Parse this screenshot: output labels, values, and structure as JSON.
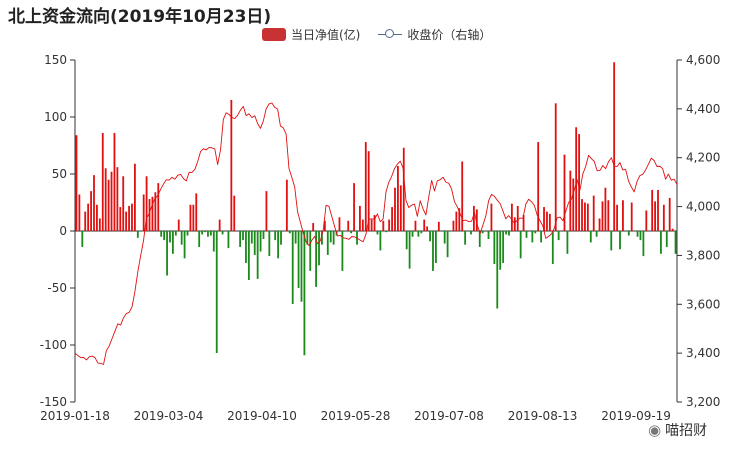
{
  "chart_data": {
    "type": "bar",
    "title": "北上资金流向(2019年10月23日)",
    "legend": {
      "position": "top-center",
      "items": [
        "当日净值(亿)",
        "收盘价（右轴）"
      ]
    },
    "x_tick_labels": [
      "2019-01-18",
      "2019-03-04",
      "2019-04-10",
      "2019-05-28",
      "2019-07-08",
      "2019-08-13",
      "2019-09-19"
    ],
    "y_left": {
      "min": -150,
      "max": 150,
      "ticks": [
        150,
        100,
        50,
        0,
        -50,
        -100,
        -150
      ],
      "tick_labels": [
        "150",
        "100",
        "50",
        "0",
        "-50",
        "-100",
        "-150"
      ]
    },
    "y_right": {
      "min": 3200,
      "max": 4600,
      "ticks": [
        4600,
        4400,
        4200,
        4000,
        3800,
        3600,
        3400,
        3200
      ],
      "tick_labels": [
        "4,600",
        "4,400",
        "4,200",
        "4,000",
        "3,800",
        "3,600",
        "3,400",
        "3,200"
      ]
    },
    "grid": false,
    "series": [
      {
        "name": "当日净值(亿)",
        "type": "bar",
        "color_positive": "#e01010",
        "color_negative": "#1a8a1a",
        "values": [
          84,
          32,
          -14,
          17,
          24,
          35,
          49,
          23,
          11,
          86,
          55,
          45,
          52,
          86,
          56,
          21,
          48,
          17,
          22,
          24,
          59,
          -6,
          0,
          32,
          48,
          28,
          30,
          34,
          42,
          -5,
          -8,
          -39,
          -10,
          -20,
          -4,
          10,
          -12,
          -24,
          -4,
          23,
          23,
          33,
          -14,
          -3,
          -1,
          -5,
          -4,
          -18,
          -107,
          10,
          -3,
          0,
          -15,
          115,
          31,
          0,
          -14,
          -8,
          -28,
          -43,
          -11,
          -21,
          -42,
          -18,
          -7,
          35,
          -22,
          0,
          -8,
          -24,
          -12,
          0,
          45,
          -2,
          -64,
          -11,
          -50,
          -62,
          -109,
          -12,
          -35,
          7,
          -49,
          -30,
          -12,
          9,
          -21,
          -10,
          -12,
          -4,
          12,
          -35,
          0,
          9,
          -2,
          42,
          -12,
          22,
          10,
          78,
          70,
          10,
          14,
          -3,
          -17,
          9,
          -1,
          10,
          21,
          38,
          57,
          40,
          73,
          -16,
          -33,
          -5,
          9,
          -5,
          -2,
          10,
          4,
          -9,
          -35,
          -28,
          8,
          0,
          -11,
          -23,
          0,
          9,
          17,
          20,
          61,
          -12,
          0,
          -3,
          22,
          19,
          -14,
          -2,
          0,
          -7,
          24,
          -29,
          -68,
          -34,
          -28,
          -3,
          -4,
          24,
          12,
          22,
          -24,
          14,
          -6,
          0,
          -10,
          -2,
          78,
          -10,
          21,
          17,
          15,
          -29,
          112,
          -8,
          0,
          67,
          -20,
          53,
          46,
          91,
          85,
          28,
          25,
          24,
          -10,
          31,
          -5,
          11,
          26,
          38,
          27,
          -17,
          148,
          23,
          -16,
          27,
          0,
          -4,
          25,
          0,
          -5,
          -8,
          -22,
          18,
          0,
          36,
          26,
          36,
          -20,
          23,
          -14,
          29,
          2,
          -20
        ]
      },
      {
        "name": "收盘价（右轴）",
        "type": "line",
        "color": "#e01010",
        "values": [
          3400,
          3390,
          3382,
          3383,
          3372,
          3385,
          3388,
          3382,
          3360,
          3358,
          3354,
          3410,
          3430,
          3460,
          3490,
          3520,
          3515,
          3545,
          3562,
          3567,
          3590,
          3652,
          3732,
          3798,
          3860,
          3950,
          3972,
          4005,
          4032,
          4045,
          4070,
          4092,
          4110,
          4108,
          4120,
          4112,
          4128,
          4132,
          4115,
          4105,
          4140,
          4140,
          4152,
          4184,
          4225,
          4237,
          4232,
          4242,
          4240,
          4236,
          4172,
          4232,
          4357,
          4384,
          4377,
          4365,
          4360,
          4374,
          4395,
          4410,
          4372,
          4380,
          4364,
          4372,
          4340,
          4320,
          4350,
          4400,
          4420,
          4424,
          4406,
          4400,
          4330,
          4322,
          4297,
          4156,
          4120,
          4080,
          3980,
          3936,
          3892,
          3856,
          3840,
          3862,
          3878,
          3848,
          3860,
          3905,
          4005,
          4001,
          3960,
          3918,
          3880,
          3882,
          3872,
          3870,
          3866,
          3877,
          3876,
          3870,
          3862,
          3856,
          3888,
          3948,
          3950,
          3948,
          3970,
          3938,
          3950,
          4060,
          4100,
          4124,
          4156,
          4174,
          4186,
          4157,
          4025,
          3996,
          4006,
          4010,
          3960,
          4024,
          3990,
          3966,
          4040,
          4107,
          4064,
          4105,
          4110,
          4120,
          4100,
          4095,
          4072,
          4020,
          3999,
          3971,
          3942,
          3945,
          3938,
          3940,
          3975,
          3924,
          3890,
          3925,
          3962,
          4025,
          4050,
          4042,
          4026,
          4012,
          3982,
          3950,
          3963,
          3948,
          3932,
          3944,
          3953,
          3952,
          4010,
          4030,
          4020,
          4005,
          3965,
          3942,
          3920,
          3870,
          3878,
          3888,
          3912,
          3954,
          3957,
          3942,
          3980,
          4016,
          4030,
          4068,
          4110,
          4068,
          4134,
          4164,
          4210,
          4196,
          4185,
          4147,
          4148,
          4168,
          4155,
          4184,
          4200,
          4166,
          4164,
          4180,
          4150,
          4152,
          4105,
          4080,
          4060,
          4103,
          4127,
          4132,
          4150,
          4174,
          4198,
          4188,
          4164,
          4165,
          4155,
          4112,
          4133,
          4108,
          4112,
          4090
        ]
      }
    ]
  },
  "watermark": {
    "text": "喵招财",
    "icon": "wechat-icon"
  }
}
